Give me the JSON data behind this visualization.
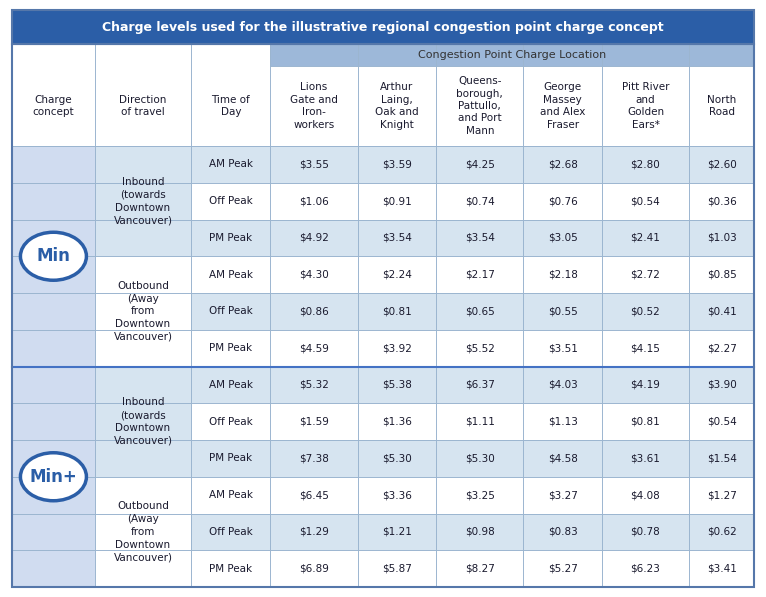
{
  "title": "Charge levels used for the illustrative regional congestion point charge concept",
  "header_bg": "#2B5EA7",
  "header_text_color": "#FFFFFF",
  "subheader_bg": "#9DB8D9",
  "col_header_bg": "#FFFFFF",
  "row_light_bg": "#FFFFFF",
  "row_mid_bg": "#D6E4F0",
  "concept_col_bg": "#D6E4F0",
  "section_border_color": "#4472C4",
  "grid_color": "#9BB5D0",
  "circle_border_color": "#2B5EA7",
  "circle_text_color": "#2B5EA7",
  "location_subheader": "Congestion Point Charge Location",
  "rows": [
    [
      "Min",
      "Inbound\n(towards\nDowntown\nVancouver)",
      "AM Peak",
      "$3.55",
      "$3.59",
      "$4.25",
      "$2.68",
      "$2.80",
      "$2.60"
    ],
    [
      "Min",
      "Inbound\n(towards\nDowntown\nVancouver)",
      "Off Peak",
      "$1.06",
      "$0.91",
      "$0.74",
      "$0.76",
      "$0.54",
      "$0.36"
    ],
    [
      "Min",
      "Inbound\n(towards\nDowntown\nVancouver)",
      "PM Peak",
      "$4.92",
      "$3.54",
      "$3.54",
      "$3.05",
      "$2.41",
      "$1.03"
    ],
    [
      "Min",
      "Outbound\n(Away\nfrom\nDowntown\nVancouver)",
      "AM Peak",
      "$4.30",
      "$2.24",
      "$2.17",
      "$2.18",
      "$2.72",
      "$0.85"
    ],
    [
      "Min",
      "Outbound\n(Away\nfrom\nDowntown\nVancouver)",
      "Off Peak",
      "$0.86",
      "$0.81",
      "$0.65",
      "$0.55",
      "$0.52",
      "$0.41"
    ],
    [
      "Min",
      "Outbound\n(Away\nfrom\nDowntown\nVancouver)",
      "PM Peak",
      "$4.59",
      "$3.92",
      "$5.52",
      "$3.51",
      "$4.15",
      "$2.27"
    ],
    [
      "Min+",
      "Inbound\n(towards\nDowntown\nVancouver)",
      "AM Peak",
      "$5.32",
      "$5.38",
      "$6.37",
      "$4.03",
      "$4.19",
      "$3.90"
    ],
    [
      "Min+",
      "Inbound\n(towards\nDowntown\nVancouver)",
      "Off Peak",
      "$1.59",
      "$1.36",
      "$1.11",
      "$1.13",
      "$0.81",
      "$0.54"
    ],
    [
      "Min+",
      "Inbound\n(towards\nDowntown\nVancouver)",
      "PM Peak",
      "$7.38",
      "$5.30",
      "$5.30",
      "$4.58",
      "$3.61",
      "$1.54"
    ],
    [
      "Min+",
      "Outbound\n(Away\nfrom\nDowntown\nVancouver)",
      "AM Peak",
      "$6.45",
      "$3.36",
      "$3.25",
      "$3.27",
      "$4.08",
      "$1.27"
    ],
    [
      "Min+",
      "Outbound\n(Away\nfrom\nDowntown\nVancouver)",
      "Off Peak",
      "$1.29",
      "$1.21",
      "$0.98",
      "$0.83",
      "$0.78",
      "$0.62"
    ],
    [
      "Min+",
      "Outbound\n(Away\nfrom\nDowntown\nVancouver)",
      "PM Peak",
      "$6.89",
      "$5.87",
      "$8.27",
      "$5.27",
      "$6.23",
      "$3.41"
    ]
  ],
  "col_headers_line1": [
    "Charge\nconcept",
    "Direction\nof travel",
    "Time of\nDay",
    "Lions\nGate and\nIron-\nworkers",
    "Arthur\nLaing,\nOak and\nKnight",
    "Queens-\nborough,\nPattullo,\nand Port\nMann",
    "George\nMassey\nand Alex\nFraser",
    "Pitt River\nand\nGolden\nEars*",
    "North\nRoad"
  ]
}
